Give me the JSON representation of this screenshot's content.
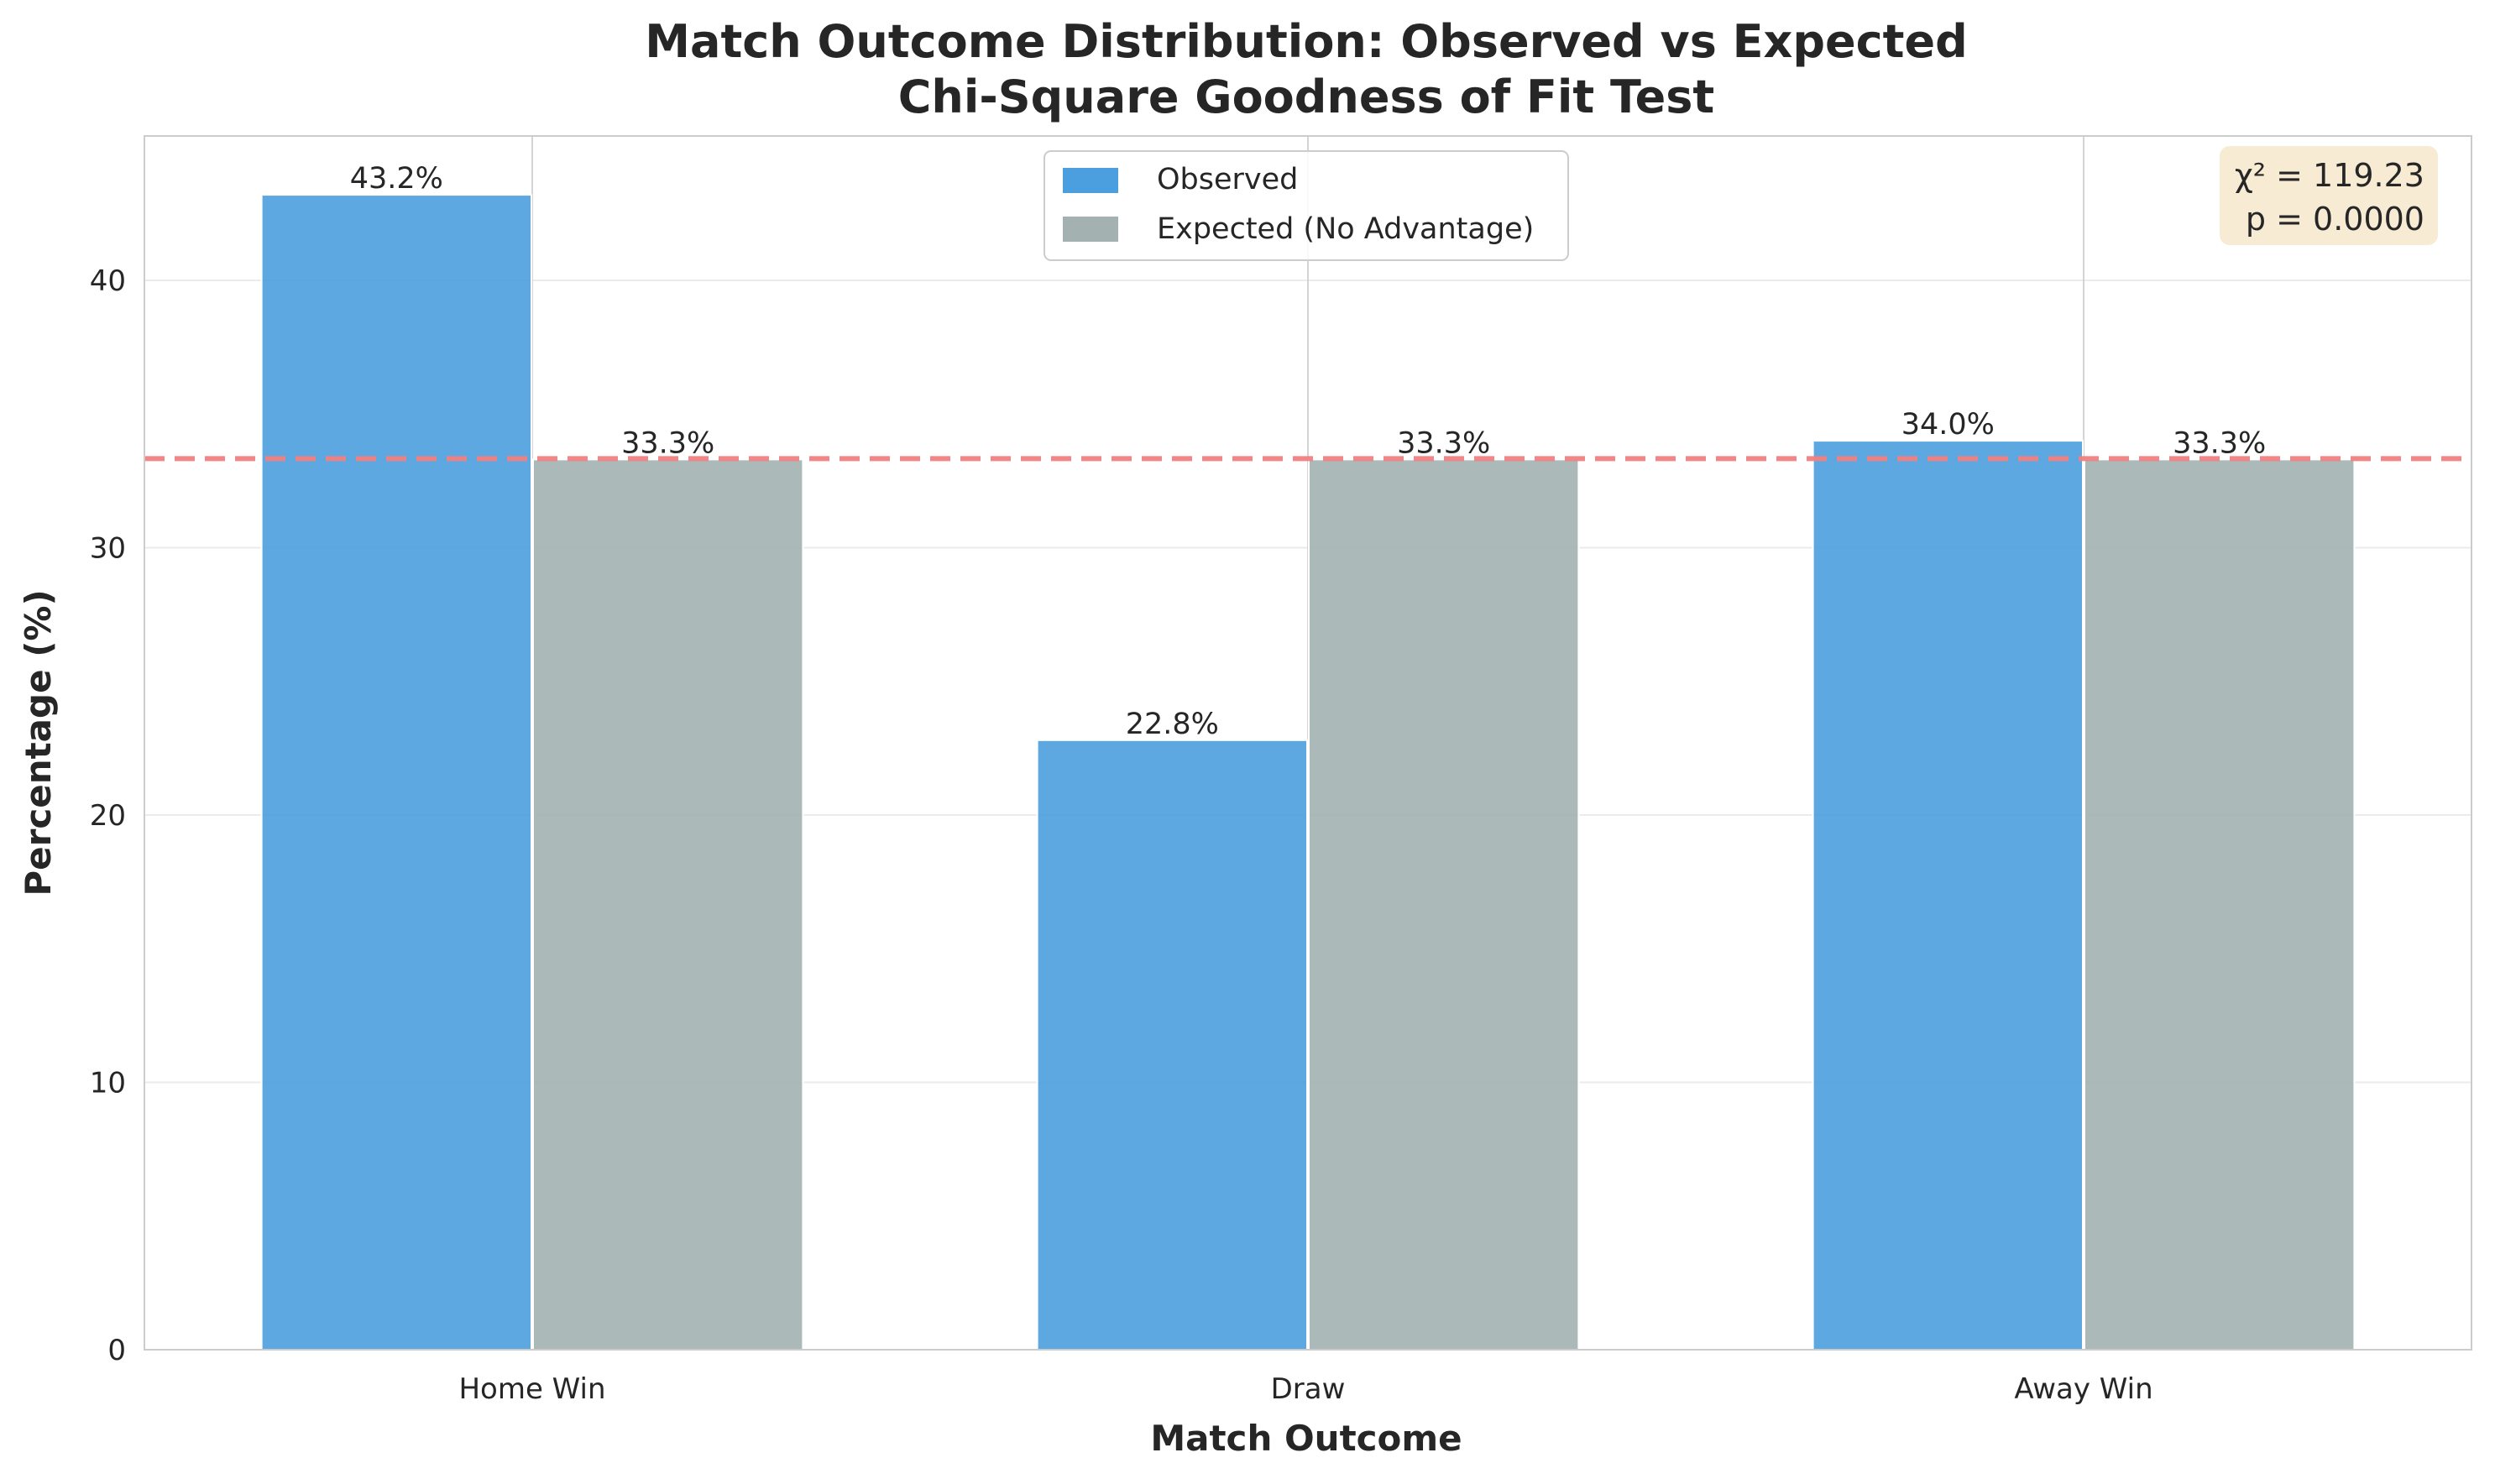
{
  "chart_data": {
    "type": "bar",
    "title": "Match Outcome Distribution: Observed vs Expected",
    "subtitle": "Chi-Square Goodness of Fit Test",
    "xlabel": "Match Outcome",
    "ylabel": "Percentage (%)",
    "categories": [
      "Home Win",
      "Draw",
      "Away Win"
    ],
    "series": [
      {
        "name": "Observed",
        "values": [
          43.2,
          22.8,
          34.0
        ],
        "labels": [
          "43.2%",
          "22.8%",
          "34.0%"
        ],
        "color": "#4c9fdf"
      },
      {
        "name": "Expected (No Advantage)",
        "values": [
          33.3,
          33.3,
          33.3
        ],
        "labels": [
          "33.3%",
          "33.3%",
          "33.3%"
        ],
        "color": "#a3b1b1"
      }
    ],
    "ylim": [
      0,
      45.4
    ],
    "yticks": [
      0,
      10,
      20,
      30,
      40
    ],
    "reference_line": {
      "value": 33.333,
      "color": "#f08080",
      "style": "dashed"
    },
    "annotation": {
      "line1": "χ² = 119.23",
      "line2": "p = 0.0000"
    },
    "legend_position": "top-center",
    "grid": true
  }
}
